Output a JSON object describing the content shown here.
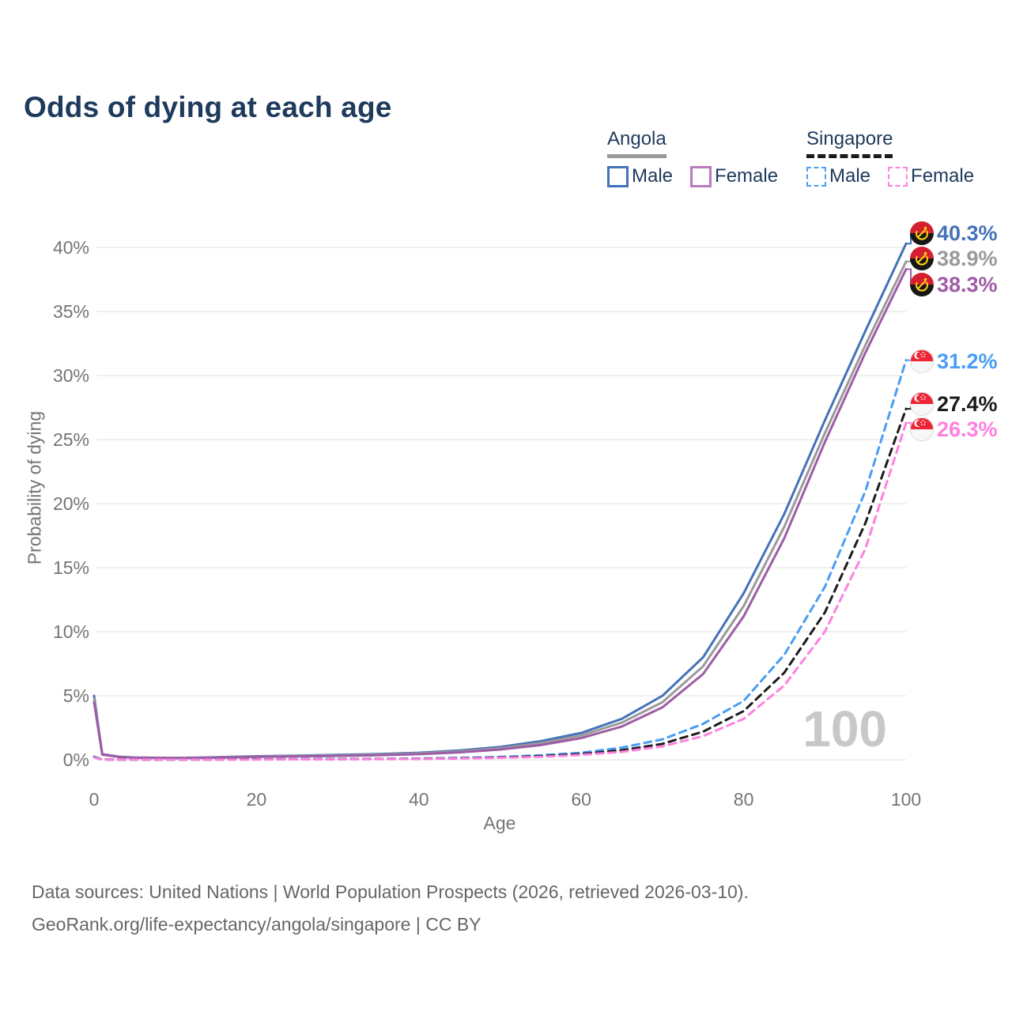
{
  "title": "Odds of dying at each age",
  "legend": {
    "groups": [
      {
        "label": "Angola",
        "line_style": "solid",
        "line_color": "#999999",
        "items": [
          {
            "label": "Male",
            "color": "#4472b8",
            "dashed": false
          },
          {
            "label": "Female",
            "color": "#bb79be",
            "dashed": false
          }
        ]
      },
      {
        "label": "Singapore",
        "line_style": "dashed",
        "line_color": "#1a1a1a",
        "items": [
          {
            "label": "Male",
            "color": "#4a9df5",
            "dashed": true
          },
          {
            "label": "Female",
            "color": "#ff80e0",
            "dashed": true
          }
        ]
      }
    ]
  },
  "watermark": "100",
  "footer": {
    "line1": "Data sources: United Nations | World Population Prospects (2026, retrieved 2026-03-10).",
    "line2": "GeoRank.org/life-expectancy/angola/singapore | CC BY"
  },
  "colors": {
    "title": "#1e3a5c",
    "axis_text": "#757575",
    "gridline": "#ececec",
    "watermark": "#c8c8c8",
    "footer_text": "#666666"
  },
  "chart_data": {
    "type": "line",
    "title": "Odds of dying at each age",
    "xlabel": "Age",
    "ylabel": "Probability of dying",
    "xlim": [
      0,
      100
    ],
    "ylim_pct": [
      0,
      42
    ],
    "x_ticks": [
      0,
      20,
      40,
      60,
      80,
      100
    ],
    "y_tick_values_pct": [
      0,
      5,
      10,
      15,
      20,
      25,
      30,
      35,
      40
    ],
    "y_tick_labels": [
      "0%",
      "5%",
      "10%",
      "15%",
      "20%",
      "25%",
      "30%",
      "35%",
      "40%"
    ],
    "grid": "horizontal",
    "legend_position": "top-right",
    "hover_age_indicator": "100",
    "ages": [
      0,
      1,
      3,
      5,
      10,
      15,
      20,
      25,
      30,
      35,
      40,
      45,
      50,
      55,
      60,
      65,
      70,
      75,
      80,
      85,
      90,
      95,
      100
    ],
    "series": [
      {
        "name": "Angola Male",
        "country": "Angola",
        "sex": "Male",
        "color": "#4472b8",
        "dashed": false,
        "flag": "angola",
        "end_label": "40.3%",
        "end_value_pct": 40.3,
        "values_pct": [
          5.0,
          0.45,
          0.25,
          0.18,
          0.15,
          0.2,
          0.28,
          0.33,
          0.38,
          0.45,
          0.55,
          0.72,
          1.0,
          1.45,
          2.1,
          3.2,
          5.0,
          8.0,
          13.0,
          19.2,
          26.5,
          33.5,
          40.3
        ]
      },
      {
        "name": "Angola Both sexes",
        "country": "Angola",
        "sex": "Both",
        "color": "#9a9a9a",
        "dashed": false,
        "flag": "angola",
        "end_label": "38.9%",
        "end_value_pct": 38.9,
        "values_pct": [
          4.75,
          0.43,
          0.23,
          0.17,
          0.14,
          0.18,
          0.25,
          0.3,
          0.34,
          0.4,
          0.5,
          0.65,
          0.9,
          1.3,
          1.9,
          2.9,
          4.5,
          7.3,
          12.0,
          18.2,
          25.5,
          32.4,
          38.9
        ]
      },
      {
        "name": "Angola Female",
        "country": "Angola",
        "sex": "Female",
        "color": "#9e5ca6",
        "dashed": false,
        "flag": "angola",
        "end_label": "38.3%",
        "end_value_pct": 38.3,
        "values_pct": [
          4.5,
          0.4,
          0.22,
          0.16,
          0.13,
          0.16,
          0.22,
          0.26,
          0.3,
          0.36,
          0.44,
          0.58,
          0.8,
          1.15,
          1.7,
          2.6,
          4.1,
          6.7,
          11.2,
          17.3,
          24.8,
          31.8,
          38.3
        ]
      },
      {
        "name": "Singapore Male",
        "country": "Singapore",
        "sex": "Male",
        "color": "#4a9df5",
        "dashed": true,
        "flag": "singapore",
        "end_label": "31.2%",
        "end_value_pct": 31.2,
        "values_pct": [
          0.25,
          0.03,
          0.02,
          0.015,
          0.01,
          0.03,
          0.04,
          0.05,
          0.06,
          0.07,
          0.1,
          0.15,
          0.22,
          0.35,
          0.55,
          0.95,
          1.6,
          2.8,
          4.6,
          8.2,
          13.5,
          21.0,
          31.2
        ]
      },
      {
        "name": "Singapore Both sexes",
        "country": "Singapore",
        "sex": "Both",
        "color": "#1c1c1c",
        "dashed": true,
        "flag": "singapore",
        "end_label": "27.4%",
        "end_value_pct": 27.4,
        "values_pct": [
          0.2,
          0.025,
          0.015,
          0.01,
          0.01,
          0.02,
          0.03,
          0.04,
          0.05,
          0.06,
          0.08,
          0.12,
          0.18,
          0.28,
          0.45,
          0.75,
          1.25,
          2.2,
          3.8,
          6.8,
          11.5,
          18.5,
          27.4
        ]
      },
      {
        "name": "Singapore Female",
        "country": "Singapore",
        "sex": "Female",
        "color": "#ff80e0",
        "dashed": true,
        "flag": "singapore",
        "end_label": "26.3%",
        "end_value_pct": 26.3,
        "values_pct": [
          0.18,
          0.02,
          0.015,
          0.01,
          0.01,
          0.02,
          0.02,
          0.03,
          0.04,
          0.05,
          0.07,
          0.1,
          0.15,
          0.23,
          0.38,
          0.62,
          1.05,
          1.85,
          3.2,
          5.8,
          10.0,
          16.5,
          26.3
        ]
      }
    ]
  }
}
